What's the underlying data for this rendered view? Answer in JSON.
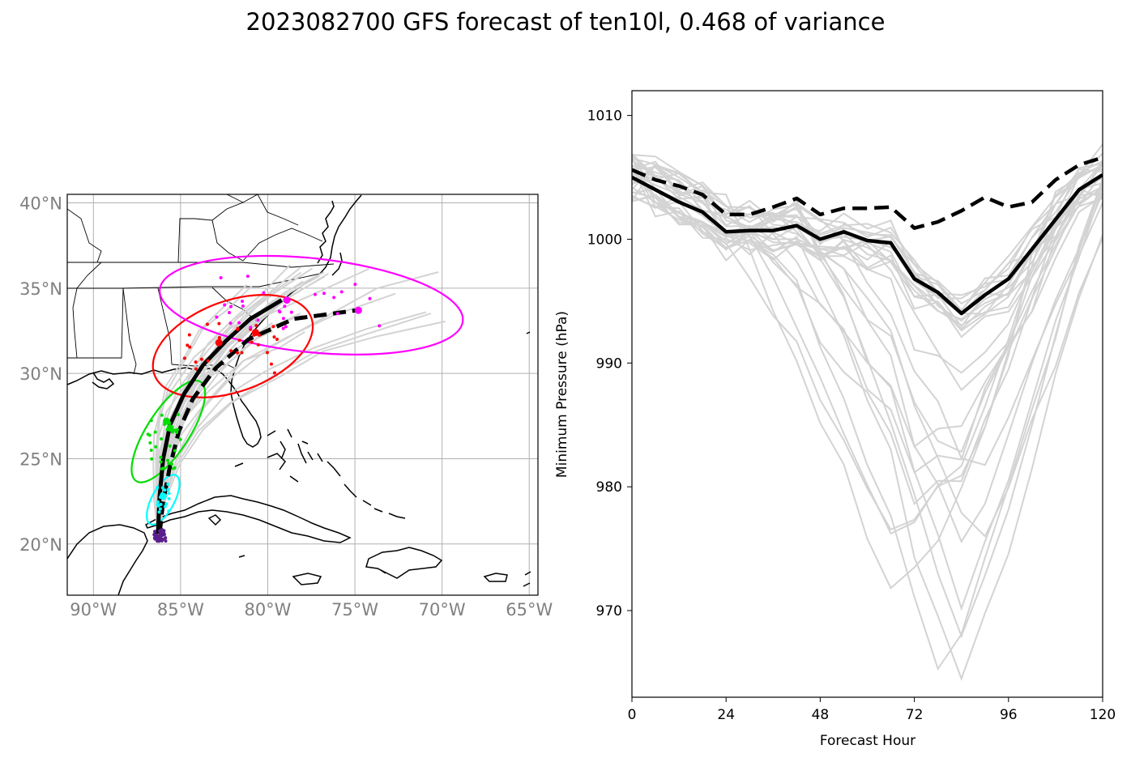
{
  "title": "2023082700 GFS forecast of ten10l, 0.468 of variance",
  "chart_data": [
    {
      "type": "map",
      "lat_ticks": [
        "40°N",
        "35°N",
        "30°N",
        "25°N",
        "20°N"
      ],
      "lon_ticks": [
        "90°W",
        "85°W",
        "80°W",
        "75°W",
        "70°W",
        "65°W"
      ],
      "lon_range": [
        -91.5,
        -64.5
      ],
      "lat_range": [
        17.0,
        40.5
      ],
      "grid": true,
      "colors": {
        "ellipse_24h": "#00ffff",
        "ellipse_48h": "#00dd00",
        "ellipse_72h": "#ff0000",
        "ellipse_96h": "#ff00ff",
        "initial": "#5a1e8c",
        "ensemble": "#d3d3d3",
        "main": "#000000"
      },
      "mean_track": {
        "lon": [
          -86.3,
          -86.2,
          -86.0,
          -85.6,
          -84.8,
          -83.7,
          -82.4,
          -81.0,
          -79.2
        ],
        "lat": [
          20.6,
          22.8,
          25.0,
          27.0,
          28.8,
          30.5,
          31.9,
          33.2,
          34.3
        ]
      },
      "principal_track": {
        "lon": [
          -86.2,
          -86.0,
          -85.6,
          -85.1,
          -84.3,
          -83.0,
          -81.1,
          -78.5,
          -74.9
        ],
        "lat": [
          20.6,
          22.5,
          24.6,
          26.6,
          28.5,
          30.3,
          32.0,
          33.2,
          33.7
        ]
      }
    },
    {
      "type": "line",
      "xlabel": "Forecast Hour",
      "ylabel": "Minimum Pressure (hPa)",
      "xlim": [
        0,
        120
      ],
      "ylim": [
        963,
        1012
      ],
      "x_ticks": [
        0,
        24,
        48,
        72,
        96,
        120
      ],
      "y_ticks": [
        970,
        980,
        990,
        1000,
        1010
      ],
      "x": [
        0,
        6,
        12,
        18,
        24,
        30,
        36,
        42,
        48,
        54,
        60,
        66,
        72,
        78,
        84,
        90,
        96,
        102,
        108,
        114,
        120
      ],
      "series": [
        {
          "style": "solid",
          "values": [
            1005.0,
            1004.0,
            1003.0,
            1002.2,
            1000.6,
            1000.7,
            1000.7,
            1001.1,
            1000.0,
            1000.6,
            999.9,
            999.7,
            996.8,
            995.7,
            994.0,
            995.5,
            996.8,
            999.2,
            1001.6,
            1004.0,
            1005.2
          ]
        },
        {
          "style": "dashed",
          "values": [
            1005.6,
            1004.8,
            1004.3,
            1003.6,
            1002.0,
            1002.0,
            1002.6,
            1003.3,
            1002.0,
            1002.5,
            1002.5,
            1002.6,
            1000.9,
            1001.4,
            1002.3,
            1003.4,
            1002.6,
            1003.0,
            1004.8,
            1006.0,
            1006.6
          ]
        }
      ],
      "ensemble_count": 30
    }
  ]
}
